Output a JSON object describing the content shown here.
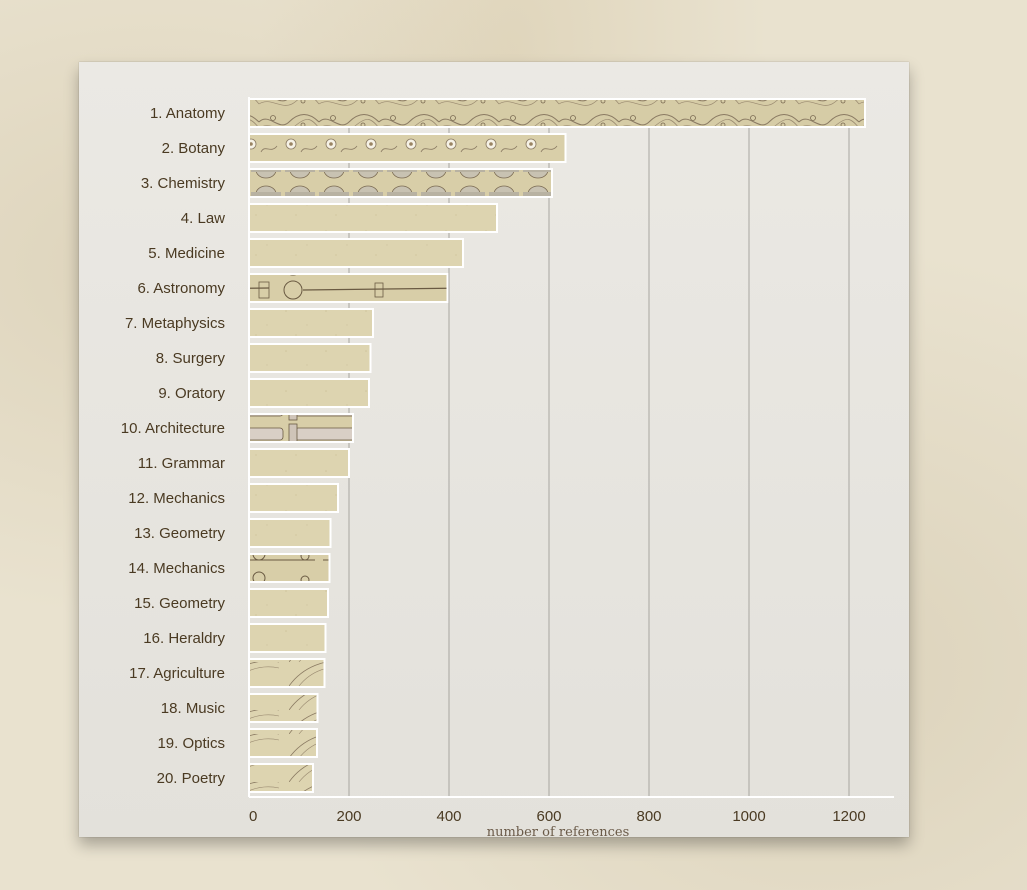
{
  "chart_data": {
    "type": "bar",
    "orientation": "horizontal",
    "categories": [
      "1. Anatomy",
      "2. Botany",
      "3. Chemistry",
      "4. Law",
      "5. Medicine",
      "6. Astronomy",
      "7. Metaphysics",
      "8. Surgery",
      "9. Oratory",
      "10. Architecture",
      "11. Grammar",
      "12. Mechanics",
      "13. Geometry",
      "14. Mechanics",
      "15. Geometry",
      "16. Heraldry",
      "17. Agriculture",
      "18. Music",
      "19. Optics",
      "20. Poetry"
    ],
    "values": [
      1232,
      633,
      606,
      496,
      428,
      397,
      248,
      243,
      240,
      208,
      200,
      178,
      163,
      161,
      158,
      153,
      151,
      137,
      136,
      128
    ],
    "xlabel": "number of references",
    "ylabel": "",
    "xlim": [
      0,
      1270
    ],
    "xticks": [
      0,
      200,
      400,
      600,
      800,
      1000,
      1200
    ],
    "grid": true,
    "colors": {
      "bar_fill": "#ddd4b0",
      "bar_stroke": "#ffffff",
      "gridline": "#a8a6a0",
      "engraving": "#8a7a62"
    }
  }
}
